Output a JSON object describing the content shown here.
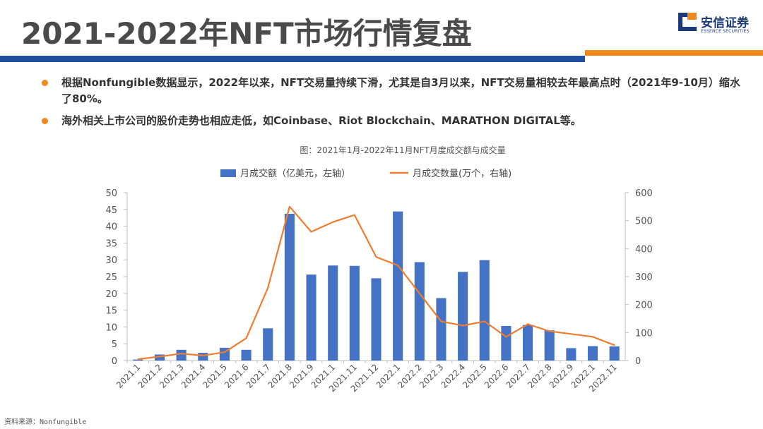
{
  "header": {
    "title": "2021-2022年NFT市场行情复盘",
    "logo_name": "安信证券",
    "logo_sub": "ESSENCE SECURITIES"
  },
  "bullets": [
    "根据Nonfungible数据显示，2022年以来，NFT交易量持续下滑，尤其是自3月以来，NFT交易量相较去年最高点时（2021年9-10月）缩水了80%。",
    "海外相关上市公司的股价走势也相应走低，如Coinbase、Riot Blockchain、MARATHON DIGITAL等。"
  ],
  "footer": "资料来源：Nonfungible",
  "colors": {
    "bar": "#4472c4",
    "line": "#ed7d31",
    "blue_band": "#1f4e9c",
    "orange_band": "#f08a1c"
  },
  "chart_data": {
    "type": "bar+line",
    "title": "图：2021年1月-2022年11月NFT月度成交额与成交量",
    "categories": [
      "2021.1",
      "2021.2",
      "2021.3",
      "2021.4",
      "2021.5",
      "2021.6",
      "2021.7",
      "2021.8",
      "2021.9",
      "2021.1",
      "2021.11",
      "2021.12",
      "2022.1",
      "2022.2",
      "2022.3",
      "2022.4",
      "2022.5",
      "2022.6",
      "2022.7",
      "2022.8",
      "2022.9",
      "2022.1",
      "2022.11"
    ],
    "series": [
      {
        "name": "月成交额（亿美元，左轴）",
        "type": "bar",
        "axis": "left",
        "values": [
          0.3,
          1.8,
          3.2,
          2.3,
          3.8,
          3.2,
          9.6,
          43.7,
          25.6,
          28.3,
          28.2,
          24.5,
          44.4,
          29.3,
          18.6,
          26.4,
          29.9,
          10.3,
          10.6,
          9.0,
          3.7,
          4.3,
          4.2
        ]
      },
      {
        "name": "月成交数量(万个，右轴)",
        "type": "line",
        "axis": "right",
        "values": [
          5,
          14,
          25,
          18,
          30,
          80,
          260,
          550,
          460,
          495,
          520,
          370,
          340,
          240,
          140,
          125,
          140,
          85,
          130,
          105,
          95,
          85,
          55
        ]
      }
    ],
    "ylim_left": [
      0,
      50
    ],
    "yticks_left": [
      0,
      5,
      10,
      15,
      20,
      25,
      30,
      35,
      40,
      45,
      50
    ],
    "ylim_right": [
      0,
      600
    ],
    "yticks_right": [
      0,
      100,
      200,
      300,
      400,
      500,
      600
    ],
    "legend": "top-center",
    "grid": false
  }
}
